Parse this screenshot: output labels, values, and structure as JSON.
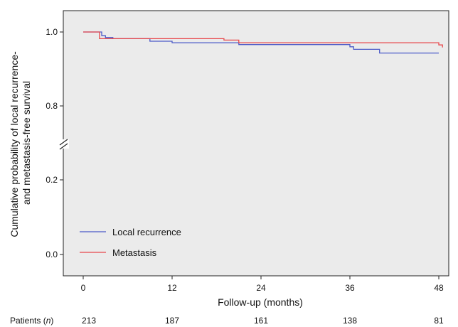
{
  "chart_data": {
    "type": "line",
    "subtype": "kaplan-meier step",
    "xlabel": "Follow-up (months)",
    "ylabel_lines": [
      "Cumulative probability of local recurrence-",
      "and metastasis-free survival"
    ],
    "xlim": [
      0,
      48
    ],
    "x_ticks": [
      0,
      12,
      24,
      36,
      48
    ],
    "y_ticks": [
      0.0,
      0.2,
      0.8,
      1.0
    ],
    "y_tick_labels": [
      "0.0",
      "0.2",
      "0.8",
      "1.0"
    ],
    "y_axis_break": [
      0.2,
      0.8
    ],
    "grid": false,
    "legend_position": "lower-left",
    "series": [
      {
        "name": "Local recurrence",
        "color": "#4b5ac8",
        "x": [
          0,
          2.5,
          3,
          4,
          9,
          12,
          21,
          35,
          36,
          36.5,
          40,
          48
        ],
        "y": [
          1.0,
          0.99,
          0.985,
          0.982,
          0.975,
          0.971,
          0.966,
          0.966,
          0.96,
          0.953,
          0.943,
          0.943
        ]
      },
      {
        "name": "Metastasis",
        "color": "#e8474b",
        "x": [
          0,
          2,
          2.2,
          19,
          21,
          48,
          48.5
        ],
        "y": [
          1.0,
          1.0,
          0.982,
          0.978,
          0.971,
          0.965,
          0.958
        ]
      }
    ],
    "risk_table": {
      "label": "Patients (n)",
      "label_prefix": "Patients (",
      "label_n": "n",
      "label_suffix": ")",
      "times": [
        0,
        12,
        24,
        36,
        48
      ],
      "counts": [
        "213",
        "187",
        "161",
        "138",
        "81"
      ]
    },
    "colors": {
      "plot_background": "#ebebeb",
      "axis": "#222222"
    }
  }
}
